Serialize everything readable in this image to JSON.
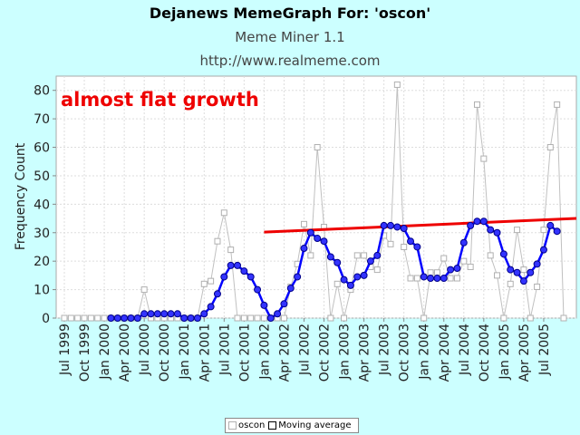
{
  "header": {
    "title": "Dejanews MemeGraph For: 'oscon'",
    "subtitle": "Meme Miner 1.1",
    "url": "http://www.realmeme.com"
  },
  "chart_data": {
    "type": "line",
    "ylabel": "Frequency Count",
    "ylim": [
      0,
      85
    ],
    "yticks": [
      0,
      10,
      20,
      30,
      40,
      50,
      60,
      70,
      80
    ],
    "grid": true,
    "annotation": "almost flat growth",
    "x_tick_labels": [
      "Jul 1999",
      "Oct 1999",
      "Jan 2000",
      "Apr 2000",
      "Jul 2000",
      "Oct 2000",
      "Jan 2001",
      "Apr 2001",
      "Jul 2001",
      "Oct 2001",
      "Jan 2002",
      "Apr 2002",
      "Jul 2002",
      "Oct 2002",
      "Jan 2003",
      "Apr 2003",
      "Jul 2003",
      "Oct 2003",
      "Jan 2004",
      "Apr 2004",
      "Jul 2004",
      "Oct 2004",
      "Jan 2005",
      "Apr 2005",
      "Jul 2005"
    ],
    "legend_placement": "bottom",
    "series": [
      {
        "name": "oscon",
        "color": "#c0c0c0",
        "marker": "square",
        "values": [
          0,
          0,
          0,
          0,
          0,
          0,
          0,
          0,
          0,
          0,
          0,
          0,
          10,
          0,
          0,
          0,
          0,
          0,
          0,
          0,
          0,
          12,
          13,
          27,
          37,
          24,
          0,
          0,
          0,
          0,
          0,
          0,
          0,
          0,
          11,
          19,
          33,
          22,
          60,
          32,
          0,
          12,
          0,
          10,
          22,
          22,
          18,
          17,
          29,
          26,
          82,
          25,
          14,
          14,
          0,
          16,
          16,
          21,
          14,
          14,
          20,
          18,
          75,
          56,
          22,
          15,
          0,
          12,
          31,
          17,
          0,
          11,
          31,
          60,
          75,
          0
        ],
        "start_month": "Jul 1999"
      },
      {
        "name": "Moving average",
        "color": "#0000ff",
        "marker": "circle",
        "values": [
          null,
          null,
          null,
          null,
          null,
          null,
          null,
          0,
          0,
          0,
          0,
          0,
          1.5,
          1.5,
          1.5,
          1.5,
          1.5,
          1.5,
          0,
          0,
          0,
          1.5,
          4,
          8.5,
          14.5,
          18.5,
          18.5,
          16.5,
          14.5,
          10,
          4.5,
          0,
          1.5,
          5,
          10.5,
          14.5,
          24.5,
          30,
          28,
          27,
          21.5,
          19.5,
          13.5,
          11.5,
          14.5,
          15,
          20,
          22,
          32.5,
          32.5,
          32,
          31.5,
          27,
          25,
          14.5,
          14,
          14,
          14,
          17,
          17.5,
          26.5,
          32.5,
          34,
          34,
          31,
          30,
          22.5,
          17,
          16,
          13,
          16,
          19,
          24,
          32.5,
          30.5,
          null
        ],
        "start_month": "Jul 1999"
      },
      {
        "name": "trend",
        "color": "#ee0000",
        "marker": "none",
        "x_range": [
          "Jan 2002",
          "Oct 2005"
        ],
        "y_range": [
          30.2,
          35
        ]
      }
    ]
  }
}
